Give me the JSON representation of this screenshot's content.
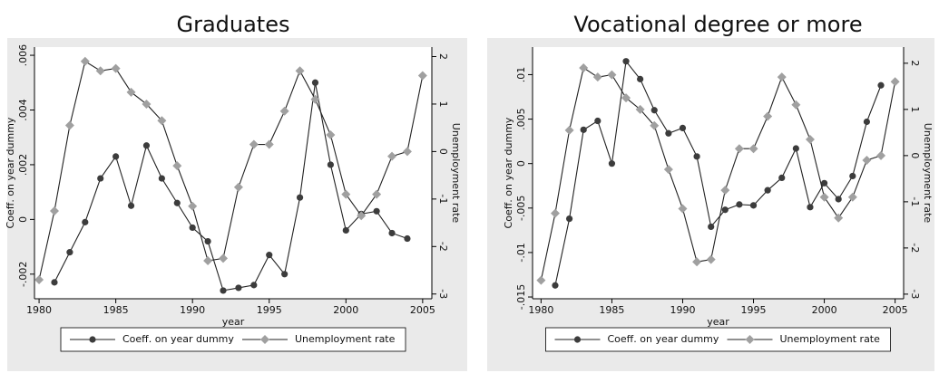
{
  "chart_data": [
    {
      "type": "line",
      "title": "Graduates",
      "x_label": "year",
      "y_label": "Coeff. on year dummy",
      "y2_label": "Unemployment rate",
      "xlim": [
        1979.7,
        2005.6
      ],
      "xticks": [
        1980,
        1985,
        1990,
        1995,
        2000,
        2005
      ],
      "ylim": [
        -0.0029,
        0.0063
      ],
      "yticks": [
        {
          "value": -0.002,
          "label": "-.002"
        },
        0,
        {
          "value": 0.002,
          "label": ".002"
        },
        {
          "value": 0.004,
          "label": ".004"
        },
        {
          "value": 0.006,
          "label": ".006"
        }
      ],
      "y2lim": [
        -3.1,
        2.2
      ],
      "y2ticks": [
        -3,
        -2,
        -1,
        0,
        1,
        2
      ],
      "legend": "bottom",
      "line_color": "#222222",
      "series": [
        {
          "name": "Coeff. on year dummy",
          "color": "#3c3c3c",
          "marker": "circle",
          "x": [
            1981,
            1982,
            1983,
            1984,
            1985,
            1986,
            1987,
            1988,
            1989,
            1990,
            1991,
            1992,
            1993,
            1994,
            1995,
            1996,
            1997,
            1998,
            1999,
            2000,
            2001,
            2002,
            2003,
            2004
          ],
          "values": [
            -0.0023,
            -0.0012,
            -0.0001,
            0.0015,
            0.0023,
            0.0005,
            0.0027,
            0.0015,
            0.0006,
            -0.0003,
            -0.0008,
            -0.0026,
            -0.0025,
            -0.0024,
            -0.0013,
            -0.002,
            0.0008,
            0.005,
            0.002,
            -0.0004,
            0.0002,
            0.0003,
            -0.0005,
            -0.0007
          ]
        },
        {
          "name": "Unemployment rate",
          "color": "#a0a0a0",
          "marker": "diamond",
          "axis": "y2",
          "x": [
            1980,
            1981,
            1982,
            1983,
            1984,
            1985,
            1986,
            1987,
            1988,
            1989,
            1990,
            1991,
            1992,
            1993,
            1994,
            1995,
            1996,
            1997,
            1998,
            1999,
            2000,
            2001,
            2002,
            2003,
            2004,
            2005
          ],
          "values": [
            -2.7,
            -1.25,
            0.55,
            1.9,
            1.7,
            1.75,
            1.25,
            1.0,
            0.65,
            -0.3,
            -1.15,
            -2.3,
            -2.25,
            -0.75,
            0.15,
            0.15,
            0.85,
            1.7,
            1.1,
            0.35,
            -0.9,
            -1.35,
            -0.9,
            -0.1,
            0,
            1.6
          ]
        }
      ]
    },
    {
      "type": "line",
      "title": "Vocational degree or more",
      "x_label": "year",
      "y_label": "Coeff. on year dummy",
      "y2_label": "Unemployment rate",
      "xlim": [
        1979.4,
        2005.6
      ],
      "xticks": [
        1980,
        1985,
        1990,
        1995,
        2000,
        2005
      ],
      "ylim": [
        -0.0152,
        0.0131
      ],
      "yticks": [
        {
          "value": -0.015,
          "label": "-.015"
        },
        {
          "value": -0.01,
          "label": "-.01"
        },
        {
          "value": -0.005,
          "label": "-.005"
        },
        0,
        {
          "value": 0.005,
          "label": ".005"
        },
        {
          "value": 0.01,
          "label": ".01"
        }
      ],
      "y2lim": [
        -3.1,
        2.35
      ],
      "y2ticks": [
        -3,
        -2,
        -1,
        0,
        1,
        2
      ],
      "legend": "bottom",
      "line_color": "#222222",
      "series": [
        {
          "name": "Coeff. on year dummy",
          "color": "#3c3c3c",
          "marker": "circle",
          "x": [
            1981,
            1982,
            1983,
            1984,
            1985,
            1986,
            1987,
            1988,
            1989,
            1990,
            1991,
            1992,
            1993,
            1994,
            1995,
            1996,
            1997,
            1998,
            1999,
            2000,
            2001,
            2002,
            2003,
            2004
          ],
          "values": [
            -0.0137,
            -0.0062,
            0.0038,
            0.0048,
            0.0,
            0.0115,
            0.0095,
            0.006,
            0.0034,
            0.004,
            0.0008,
            -0.0071,
            -0.0052,
            -0.0046,
            -0.0047,
            -0.003,
            -0.0016,
            0.0017,
            -0.0049,
            -0.0022,
            -0.004,
            -0.0014,
            0.0047,
            0.0088
          ]
        },
        {
          "name": "Unemployment rate",
          "color": "#a0a0a0",
          "marker": "diamond",
          "axis": "y2",
          "x": [
            1980,
            1981,
            1982,
            1983,
            1984,
            1985,
            1986,
            1987,
            1988,
            1989,
            1990,
            1991,
            1992,
            1993,
            1994,
            1995,
            1996,
            1997,
            1998,
            1999,
            2000,
            2001,
            2002,
            2003,
            2004,
            2005
          ],
          "values": [
            -2.7,
            -1.25,
            0.55,
            1.9,
            1.7,
            1.75,
            1.25,
            1.0,
            0.65,
            -0.3,
            -1.15,
            -2.3,
            -2.25,
            -0.75,
            0.15,
            0.15,
            0.85,
            1.7,
            1.1,
            0.35,
            -0.9,
            -1.35,
            -0.9,
            -0.1,
            0,
            1.6
          ]
        }
      ]
    }
  ]
}
